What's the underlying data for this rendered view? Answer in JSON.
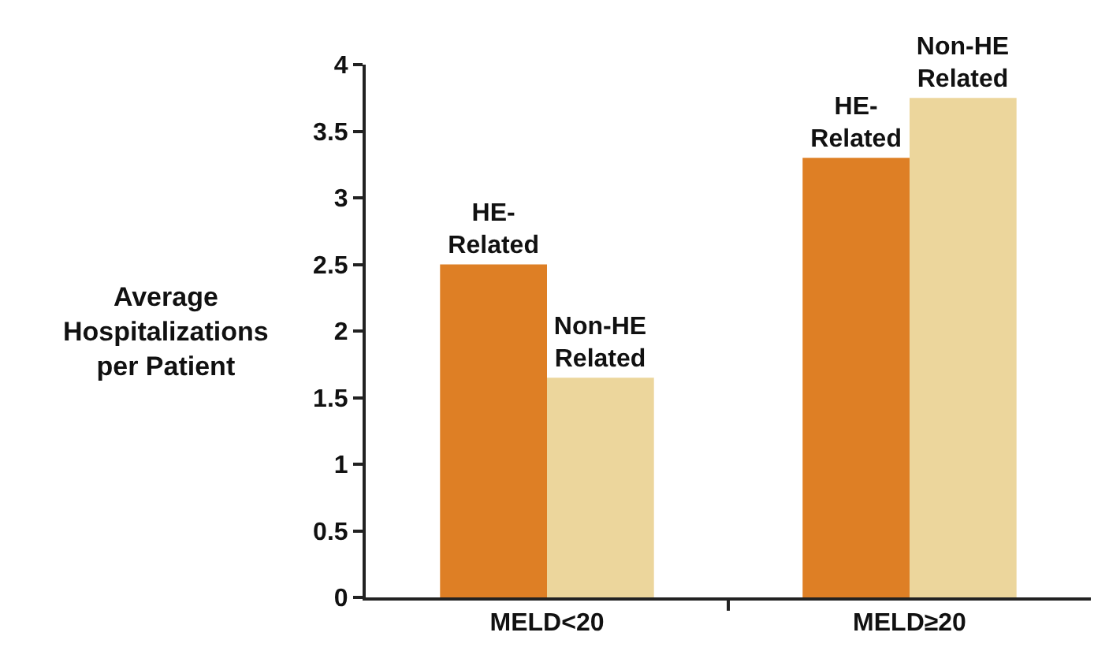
{
  "chart_data": {
    "type": "bar",
    "ylabel": "Average Hospitalizations per Patient",
    "categories": [
      "MELD<20",
      "MELD≥20"
    ],
    "series": [
      {
        "name": "HE-Related",
        "color": "#de7f25",
        "values": [
          2.5,
          3.3
        ]
      },
      {
        "name": "Non-HE Related",
        "color": "#ecd69c",
        "values": [
          1.65,
          3.75
        ]
      }
    ],
    "ylim": [
      0,
      4
    ],
    "yticks": [
      0,
      0.5,
      1,
      1.5,
      2,
      2.5,
      3,
      3.5,
      4
    ],
    "grid": false,
    "legend": false
  }
}
